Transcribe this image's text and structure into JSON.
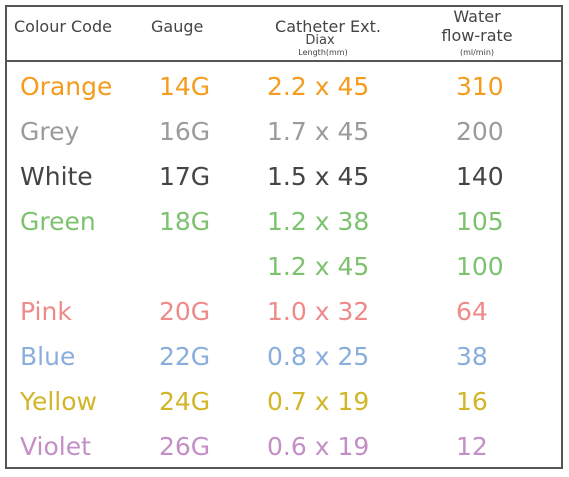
{
  "header": {
    "colour_code": "Colour Code",
    "gauge": "Gauge",
    "catheter_title": "Catheter Ext.",
    "catheter_dia": "Diax",
    "catheter_unit": "Length(mm)",
    "water_line1": "Water",
    "water_line2": "flow-rate",
    "water_unit": "(ml/min)"
  },
  "rows": [
    {
      "colour": "Orange",
      "gauge": "14G",
      "catheter": "2.2 x 45",
      "flow": "310",
      "color": "#f39c1e"
    },
    {
      "colour": "Grey",
      "gauge": "16G",
      "catheter": "1.7 x 45",
      "flow": "200",
      "color": "#9b9b9b"
    },
    {
      "colour": "White",
      "gauge": "17G",
      "catheter": "1.5 x 45",
      "flow": "140",
      "color": "#444444"
    },
    {
      "colour": "Green",
      "gauge": "18G",
      "catheter": "1.2 x 38",
      "flow": "105",
      "color": "#7dc26f"
    },
    {
      "colour": "",
      "gauge": "",
      "catheter": "1.2 x 45",
      "flow": "100",
      "color": "#7dc26f"
    },
    {
      "colour": "Pink",
      "gauge": "20G",
      "catheter": "1.0 x 32",
      "flow": "64",
      "color": "#ee8a8a"
    },
    {
      "colour": "Blue",
      "gauge": "22G",
      "catheter": "0.8 x 25",
      "flow": "38",
      "color": "#8aaedc"
    },
    {
      "colour": "Yellow",
      "gauge": "24G",
      "catheter": "0.7 x 19",
      "flow": "16",
      "color": "#d2b62a"
    },
    {
      "colour": "Violet",
      "gauge": "26G",
      "catheter": "0.6 x 19",
      "flow": "12",
      "color": "#c48fc6"
    }
  ]
}
